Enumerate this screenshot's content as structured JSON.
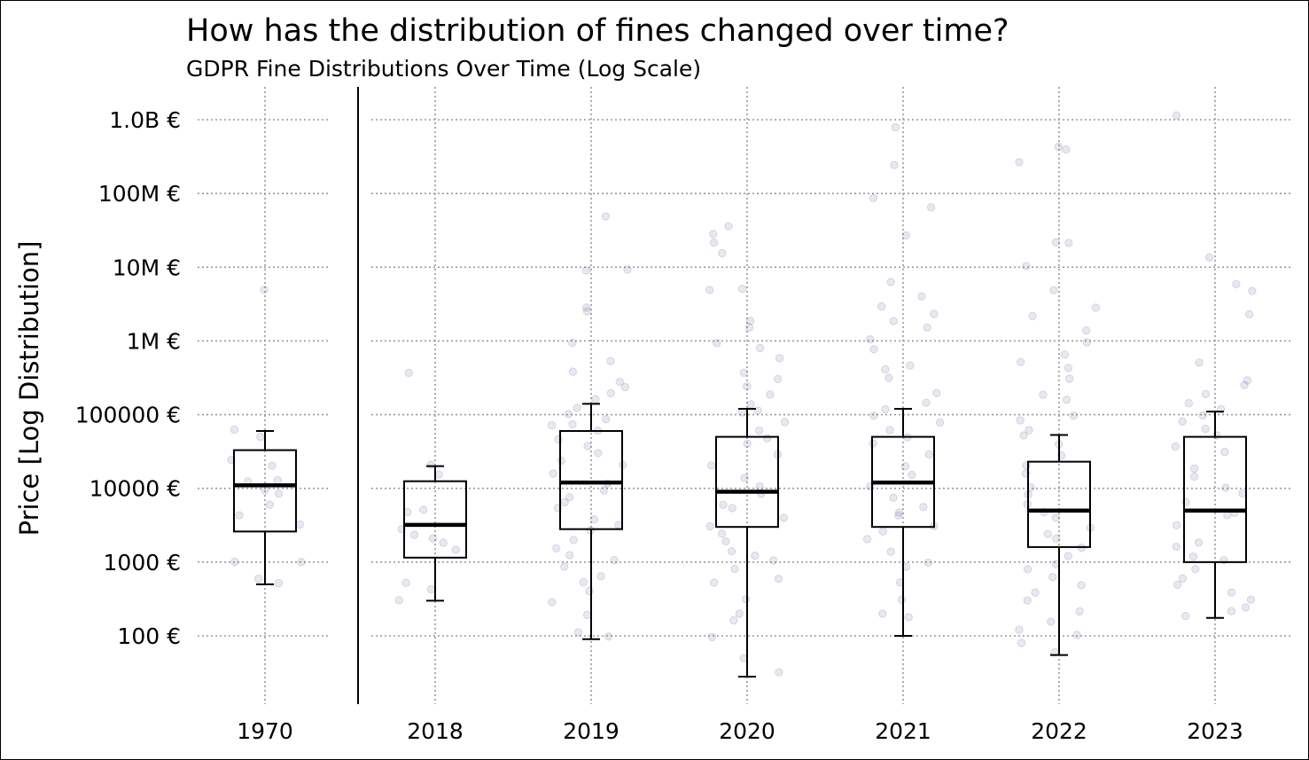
{
  "title": "How has the distribution of fines changed over time?",
  "subtitle": "GDPR Fine Distributions Over Time (Log Scale)",
  "chart_data": {
    "type": "box",
    "title": "How has the distribution of fines changed over time?",
    "subtitle": "GDPR Fine Distributions Over Time (Log Scale)",
    "ylabel": "Price [Log Distribution]",
    "xlabel": "",
    "y_scale": "log",
    "y_tick_values": [
      100,
      1000,
      10000,
      100000,
      1000000,
      10000000,
      100000000,
      1000000000
    ],
    "y_tick_labels": [
      "100 €",
      "1000 €",
      "10000 €",
      "100000 €",
      "1M €",
      "10M €",
      "100M €",
      "1.0B €"
    ],
    "ylim": [
      12,
      3000000000
    ],
    "grid": "dotted",
    "point_color": "#4a4a8a",
    "categories": [
      "1970",
      "2018",
      "2019",
      "2020",
      "2021",
      "2022",
      "2023"
    ],
    "boxes": [
      {
        "category": "1970",
        "whisker_low": 500,
        "q1": 2600,
        "median": 11000,
        "q3": 33000,
        "whisker_high": 60000,
        "points": [
          5000000,
          60000,
          50000,
          26000,
          20000,
          13000,
          12000,
          9000,
          8000,
          6000,
          4000,
          3500,
          1000,
          950,
          600,
          500
        ]
      },
      {
        "category": "2018",
        "whisker_low": 300,
        "q1": 1150,
        "median": 3200,
        "q3": 12500,
        "whisker_high": 20000,
        "points": [
          400000,
          20000,
          15000,
          5000,
          5000,
          3000,
          2500,
          2000,
          1800,
          1500,
          500,
          400,
          300
        ]
      },
      {
        "category": "2019",
        "whisker_low": 90,
        "q1": 2800,
        "median": 12000,
        "q3": 60000,
        "whisker_high": 140000,
        "points": [
          50000000,
          9000000,
          9000000,
          3000000,
          2500000,
          900000,
          500000,
          400000,
          300000,
          250000,
          200000,
          150000,
          120000,
          100000,
          90000,
          80000,
          70000,
          60000,
          50000,
          40000,
          30000,
          25000,
          20000,
          15000,
          12000,
          10000,
          8000,
          6000,
          5000,
          4000,
          3000,
          2500,
          2000,
          1500,
          1200,
          1000,
          800,
          600,
          500,
          400,
          300,
          200,
          120,
          100
        ]
      },
      {
        "category": "2020",
        "whisker_low": 28,
        "q1": 3000,
        "median": 9000,
        "q3": 50000,
        "whisker_high": 120000,
        "points": [
          35000000,
          30000000,
          20000000,
          15000000,
          5000000,
          5000000,
          2000000,
          1500000,
          1000000,
          800000,
          600000,
          400000,
          300000,
          250000,
          200000,
          150000,
          120000,
          100000,
          80000,
          60000,
          50000,
          40000,
          30000,
          20000,
          15000,
          10000,
          8000,
          6000,
          5000,
          4000,
          3000,
          2500,
          2000,
          1500,
          1200,
          1000,
          800,
          600,
          500,
          300,
          200,
          150,
          100,
          50,
          30
        ]
      },
      {
        "category": "2021",
        "whisker_low": 100,
        "q1": 3000,
        "median": 12000,
        "q3": 50000,
        "whisker_high": 120000,
        "points": [
          750000000,
          225000000,
          90000000,
          60000000,
          26000000,
          6000000,
          4000000,
          3000000,
          2500000,
          2000000,
          1500000,
          1000000,
          800000,
          500000,
          400000,
          300000,
          200000,
          150000,
          120000,
          100000,
          80000,
          60000,
          50000,
          40000,
          30000,
          20000,
          15000,
          10000,
          8000,
          6000,
          5000,
          4000,
          3000,
          2500,
          2000,
          1500,
          1000,
          800,
          500,
          300,
          200,
          170
        ]
      },
      {
        "category": "2022",
        "whisker_low": 55,
        "q1": 1600,
        "median": 5000,
        "q3": 23000,
        "whisker_high": 53000,
        "points": [
          405000000,
          400000000,
          265000000,
          20000000,
          20000000,
          10000000,
          5000000,
          3000000,
          2000000,
          1500000,
          1000000,
          700000,
          500000,
          400000,
          300000,
          200000,
          150000,
          100000,
          80000,
          60000,
          50000,
          40000,
          30000,
          20000,
          15000,
          10000,
          8000,
          6000,
          5000,
          4000,
          3000,
          2500,
          2000,
          1500,
          1200,
          1000,
          800,
          600,
          500,
          400,
          300,
          200,
          150,
          120,
          100,
          80,
          60
        ]
      },
      {
        "category": "2023",
        "whisker_low": 175,
        "q1": 1000,
        "median": 5000,
        "q3": 50000,
        "whisker_high": 110000,
        "points": [
          1200000000,
          14000000,
          5500000,
          5000000,
          2200000,
          500000,
          300000,
          250000,
          200000,
          150000,
          120000,
          100000,
          80000,
          60000,
          50000,
          40000,
          30000,
          20000,
          15000,
          10000,
          8000,
          6000,
          5000,
          4000,
          3000,
          2000,
          1500,
          1200,
          1000,
          800,
          600,
          500,
          400,
          300,
          250,
          200,
          180
        ]
      }
    ]
  }
}
